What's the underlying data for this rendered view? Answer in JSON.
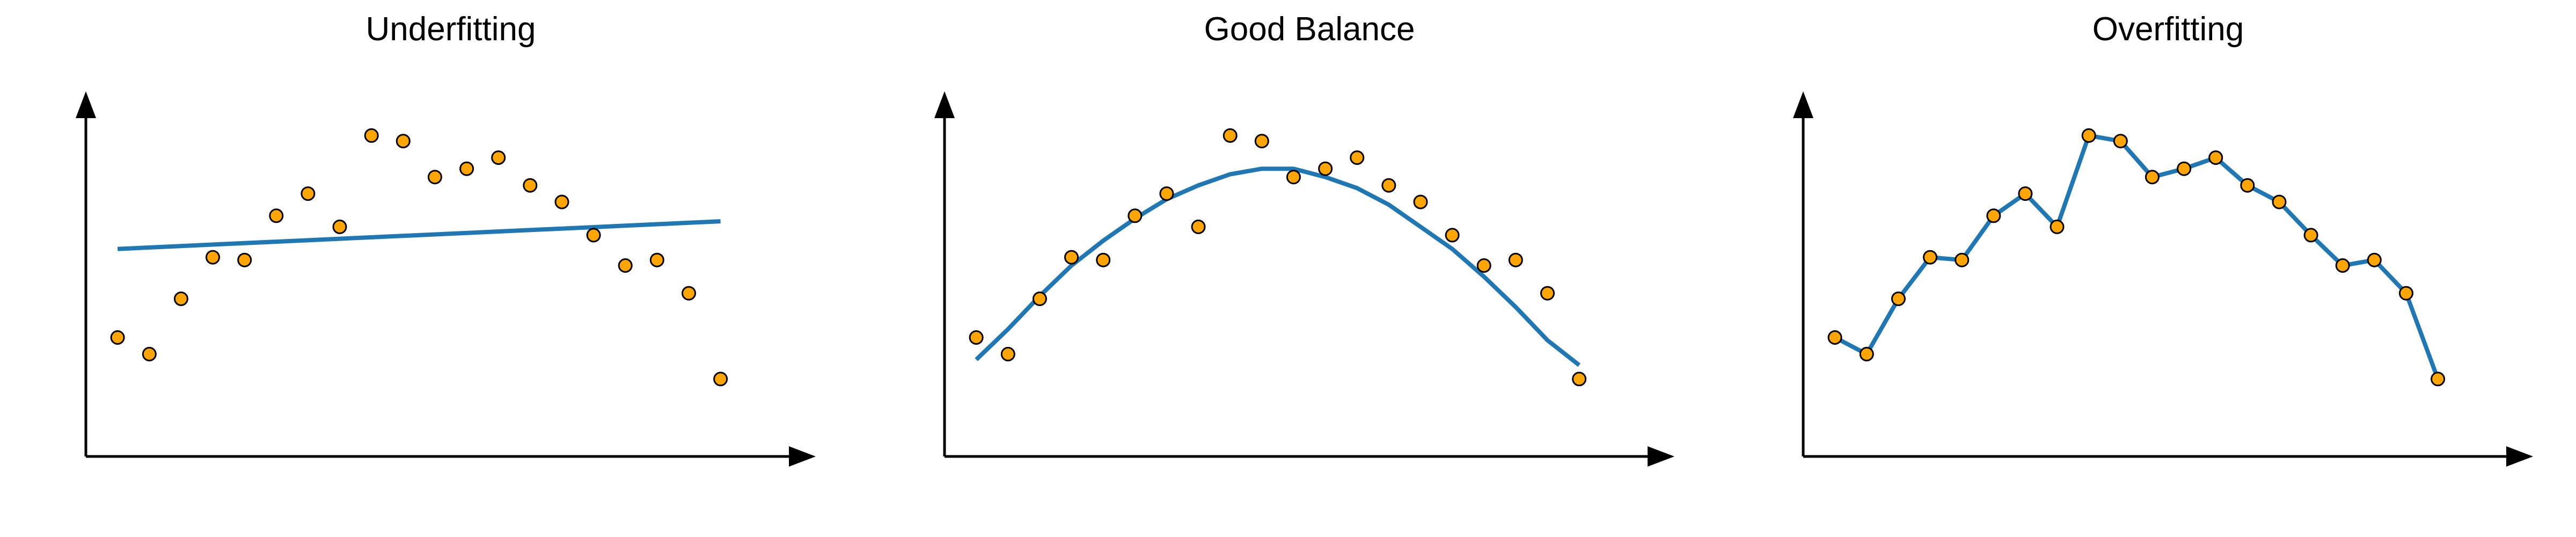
{
  "colors": {
    "fit_line": "#1f77b4",
    "points": "#ffa500",
    "point_edge": "#000000",
    "axes": "#000000"
  },
  "chart_data": [
    {
      "type": "scatter",
      "title": "Underfitting",
      "fit": "linear",
      "xlim": [
        0,
        1.15
      ],
      "ylim": [
        -0.2,
        1.12
      ],
      "x": [
        0.05,
        0.1,
        0.15,
        0.2,
        0.25,
        0.3,
        0.35,
        0.4,
        0.45,
        0.5,
        0.55,
        0.6,
        0.65,
        0.7,
        0.75,
        0.8,
        0.85,
        0.9,
        0.95,
        1.0
      ],
      "y": [
        0.23,
        0.17,
        0.37,
        0.52,
        0.51,
        0.67,
        0.75,
        0.63,
        0.96,
        0.94,
        0.81,
        0.84,
        0.88,
        0.78,
        0.72,
        0.6,
        0.49,
        0.51,
        0.39,
        0.08
      ],
      "fit_line": {
        "x": [
          0.05,
          1.0
        ],
        "y": [
          0.55,
          0.65
        ]
      }
    },
    {
      "type": "scatter",
      "title": "Good Balance",
      "fit": "quadratic",
      "xlim": [
        0,
        1.15
      ],
      "ylim": [
        -0.2,
        1.12
      ],
      "x": [
        0.05,
        0.1,
        0.15,
        0.2,
        0.25,
        0.3,
        0.35,
        0.4,
        0.45,
        0.5,
        0.55,
        0.6,
        0.65,
        0.7,
        0.75,
        0.8,
        0.85,
        0.9,
        0.95,
        1.0
      ],
      "y": [
        0.23,
        0.17,
        0.37,
        0.52,
        0.51,
        0.67,
        0.75,
        0.63,
        0.96,
        0.94,
        0.81,
        0.84,
        0.88,
        0.78,
        0.72,
        0.6,
        0.49,
        0.51,
        0.39,
        0.08
      ],
      "fit_line": {
        "x": [
          0.05,
          0.1,
          0.15,
          0.2,
          0.25,
          0.3,
          0.35,
          0.4,
          0.45,
          0.5,
          0.55,
          0.6,
          0.65,
          0.7,
          0.75,
          0.8,
          0.85,
          0.9,
          0.95,
          1.0
        ],
        "y": [
          0.15,
          0.26,
          0.38,
          0.49,
          0.58,
          0.66,
          0.73,
          0.78,
          0.82,
          0.84,
          0.84,
          0.81,
          0.77,
          0.71,
          0.63,
          0.55,
          0.45,
          0.34,
          0.22,
          0.13
        ]
      }
    },
    {
      "type": "scatter",
      "title": "Overfitting",
      "fit": "interpolating",
      "xlim": [
        0,
        1.15
      ],
      "ylim": [
        -0.2,
        1.12
      ],
      "x": [
        0.05,
        0.1,
        0.15,
        0.2,
        0.25,
        0.3,
        0.35,
        0.4,
        0.45,
        0.5,
        0.55,
        0.6,
        0.65,
        0.7,
        0.75,
        0.8,
        0.85,
        0.9,
        0.95,
        1.0
      ],
      "y": [
        0.23,
        0.17,
        0.37,
        0.52,
        0.51,
        0.67,
        0.75,
        0.63,
        0.96,
        0.94,
        0.81,
        0.84,
        0.88,
        0.78,
        0.72,
        0.6,
        0.49,
        0.51,
        0.39,
        0.08
      ],
      "fit_line": {
        "x": [
          0.05,
          0.1,
          0.15,
          0.2,
          0.25,
          0.3,
          0.35,
          0.4,
          0.45,
          0.5,
          0.55,
          0.6,
          0.65,
          0.7,
          0.75,
          0.8,
          0.85,
          0.9,
          0.95,
          1.0
        ],
        "y": [
          0.23,
          0.17,
          0.37,
          0.52,
          0.51,
          0.67,
          0.75,
          0.63,
          0.96,
          0.94,
          0.81,
          0.84,
          0.88,
          0.78,
          0.72,
          0.6,
          0.49,
          0.51,
          0.39,
          0.08
        ]
      }
    }
  ]
}
